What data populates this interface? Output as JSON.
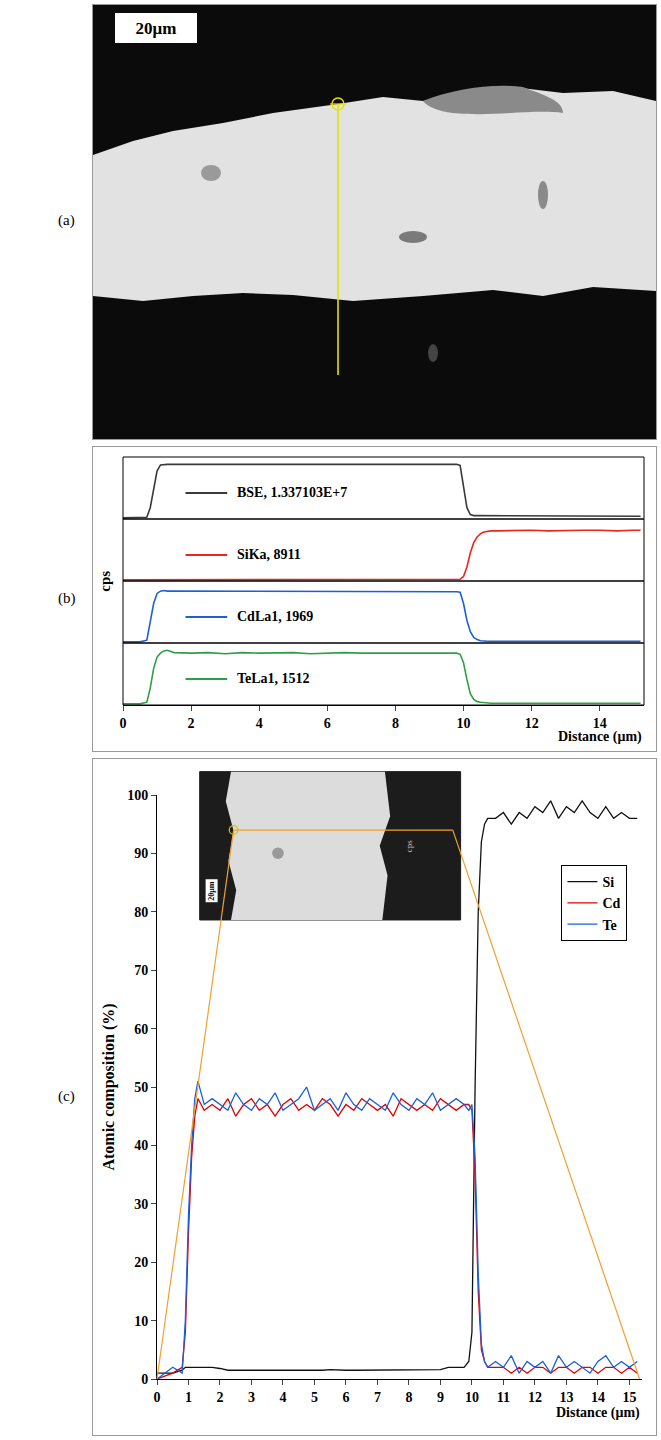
{
  "panel_labels": [
    "(a)",
    "(b)",
    "(c)"
  ],
  "image_a": {
    "scale_label": "20μm"
  },
  "inset_c": {
    "scale_label": "20μm",
    "side_label": "cps"
  },
  "chart_data": [
    {
      "type": "line",
      "x_label": "Distance (μm)",
      "y_label": "cps",
      "xlim": [
        0,
        15.3
      ],
      "xticks": [
        0,
        2,
        4,
        6,
        8,
        10,
        12,
        14
      ],
      "ylim": [
        0,
        1.1
      ],
      "tick_labels": "x",
      "x": [
        0,
        0.5,
        0.7,
        0.8,
        0.9,
        1.0,
        1.1,
        1.2,
        1.3,
        1.5,
        2,
        2.5,
        3,
        3.5,
        4,
        4.5,
        5,
        5.5,
        6,
        6.5,
        7,
        7.5,
        8,
        8.5,
        9,
        9.5,
        9.8,
        9.9,
        10.0,
        10.1,
        10.2,
        10.3,
        10.4,
        10.5,
        10.6,
        10.7,
        10.8,
        11,
        11.5,
        12,
        12.5,
        13,
        13.5,
        14,
        14.5,
        15,
        15.2
      ],
      "series": [
        {
          "name": "BSE, 1.337103E+7",
          "color": "#3a3a3a",
          "values": [
            0.02,
            0.02,
            0.03,
            0.2,
            0.55,
            0.85,
            0.96,
            0.97,
            0.97,
            0.97,
            0.97,
            0.96,
            0.97,
            0.97,
            0.96,
            0.97,
            0.97,
            0.96,
            0.97,
            0.97,
            0.96,
            0.97,
            0.97,
            0.96,
            0.97,
            0.97,
            0.97,
            0.95,
            0.6,
            0.2,
            0.08,
            0.06,
            0.06,
            0.06,
            0.06,
            0.06,
            0.06,
            0.06,
            0.06,
            0.05,
            0.06,
            0.06,
            0.05,
            0.05,
            0.05,
            0.05,
            0.05
          ]
        },
        {
          "name": "SiKa, 8911",
          "color": "#e8281e",
          "values": [
            0.02,
            0.02,
            0.02,
            0.02,
            0.02,
            0.02,
            0.02,
            0.02,
            0.02,
            0.02,
            0.02,
            0.02,
            0.03,
            0.02,
            0.02,
            0.02,
            0.03,
            0.02,
            0.02,
            0.02,
            0.03,
            0.02,
            0.02,
            0.02,
            0.03,
            0.02,
            0.03,
            0.03,
            0.08,
            0.25,
            0.5,
            0.68,
            0.78,
            0.84,
            0.87,
            0.88,
            0.89,
            0.89,
            0.9,
            0.9,
            0.89,
            0.9,
            0.9,
            0.9,
            0.89,
            0.9,
            0.9
          ]
        },
        {
          "name": "CdLa1, 1969",
          "color": "#1f5fd6",
          "values": [
            0.02,
            0.02,
            0.05,
            0.35,
            0.7,
            0.88,
            0.92,
            0.93,
            0.92,
            0.92,
            0.92,
            0.91,
            0.92,
            0.91,
            0.92,
            0.92,
            0.91,
            0.92,
            0.91,
            0.92,
            0.92,
            0.91,
            0.92,
            0.91,
            0.92,
            0.92,
            0.91,
            0.9,
            0.7,
            0.4,
            0.2,
            0.1,
            0.06,
            0.04,
            0.03,
            0.03,
            0.03,
            0.03,
            0.03,
            0.03,
            0.03,
            0.03,
            0.03,
            0.03,
            0.03,
            0.03,
            0.03
          ]
        },
        {
          "name": "TeLa1, 1512",
          "color": "#2ea043",
          "values": [
            0.02,
            0.02,
            0.05,
            0.3,
            0.65,
            0.85,
            0.92,
            0.96,
            0.97,
            0.93,
            0.92,
            0.93,
            0.91,
            0.93,
            0.92,
            0.92,
            0.93,
            0.91,
            0.92,
            0.93,
            0.92,
            0.92,
            0.93,
            0.92,
            0.92,
            0.92,
            0.92,
            0.9,
            0.75,
            0.45,
            0.2,
            0.1,
            0.06,
            0.05,
            0.04,
            0.04,
            0.03,
            0.03,
            0.03,
            0.03,
            0.03,
            0.03,
            0.03,
            0.03,
            0.03,
            0.03,
            0.03
          ]
        }
      ]
    },
    {
      "type": "line",
      "x_label": "Distance (μm)",
      "y_label": "Atomic composition (%)",
      "xlim": [
        0,
        15.4
      ],
      "xticks": [
        0,
        1,
        2,
        3,
        4,
        5,
        6,
        7,
        8,
        9,
        10,
        11,
        12,
        13,
        14,
        15
      ],
      "ylim": [
        0,
        100
      ],
      "yticks": [
        0,
        10,
        20,
        30,
        40,
        50,
        60,
        70,
        80,
        90,
        100
      ],
      "legend": "upper right",
      "x": [
        0,
        0.5,
        0.8,
        0.9,
        1,
        1.1,
        1.2,
        1.3,
        1.4,
        1.5,
        1.75,
        2,
        2.25,
        2.5,
        2.75,
        3,
        3.25,
        3.5,
        3.75,
        4,
        4.25,
        4.5,
        4.75,
        5,
        5.25,
        5.5,
        5.75,
        6,
        6.25,
        6.5,
        6.75,
        7,
        7.25,
        7.5,
        7.75,
        8,
        8.25,
        8.5,
        8.75,
        9,
        9.25,
        9.5,
        9.75,
        9.9,
        10,
        10.1,
        10.2,
        10.3,
        10.4,
        10.5,
        10.75,
        11,
        11.25,
        11.5,
        11.75,
        12,
        12.25,
        12.5,
        12.75,
        13,
        13.25,
        13.5,
        13.75,
        14,
        14.25,
        14.5,
        14.75,
        15,
        15.25
      ],
      "series": [
        {
          "name": "Si",
          "color": "#111111",
          "values": [
            1,
            1,
            1.5,
            2,
            2,
            2,
            2,
            2,
            2,
            2,
            2,
            1.8,
            1.5,
            1.5,
            1.5,
            1.5,
            1.5,
            1.4,
            1.5,
            1.5,
            1.5,
            1.5,
            1.5,
            1.5,
            1.5,
            1.6,
            1.5,
            1.5,
            1.5,
            1.5,
            1.6,
            1.5,
            1.5,
            1.5,
            1.5,
            1.5,
            1.6,
            1.5,
            1.5,
            1.6,
            2,
            2,
            2,
            3,
            8,
            50,
            80,
            92,
            95,
            96,
            96,
            97,
            95,
            97,
            96,
            98,
            97,
            99,
            96,
            98,
            97,
            99,
            97,
            96,
            98,
            96,
            97,
            96,
            96
          ]
        },
        {
          "name": "Cd",
          "color": "#e00000",
          "values": [
            0,
            1,
            2,
            8,
            25,
            38,
            45,
            48,
            47,
            46,
            47,
            46,
            48,
            45,
            47,
            48,
            46,
            47,
            45,
            47,
            48,
            46,
            47,
            46,
            48,
            47,
            45,
            47,
            46,
            48,
            47,
            46,
            47,
            45,
            48,
            47,
            46,
            47,
            46,
            48,
            47,
            46,
            47,
            47,
            46,
            35,
            15,
            5,
            3,
            2,
            2,
            2,
            1,
            2,
            1,
            2,
            2,
            1,
            2,
            2,
            1,
            2,
            2,
            1,
            2,
            2,
            1,
            2,
            1
          ]
        },
        {
          "name": "Te",
          "color": "#1a5fe0",
          "values": [
            0,
            2,
            1,
            10,
            28,
            40,
            48,
            51,
            49,
            47,
            48,
            47,
            46,
            49,
            47,
            46,
            48,
            47,
            49,
            46,
            47,
            48,
            50,
            46,
            47,
            48,
            46,
            49,
            47,
            46,
            48,
            47,
            46,
            49,
            47,
            46,
            48,
            47,
            49,
            46,
            47,
            48,
            47,
            46,
            47,
            38,
            18,
            6,
            3,
            2,
            3,
            2,
            4,
            1,
            3,
            2,
            3,
            1,
            4,
            2,
            3,
            2,
            1,
            3,
            4,
            2,
            3,
            2,
            3
          ]
        }
      ]
    }
  ]
}
